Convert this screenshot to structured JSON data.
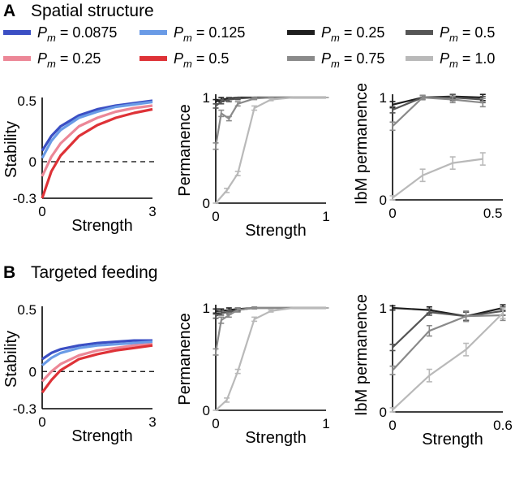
{
  "panels": [
    {
      "label": "A",
      "title": "Spatial structure"
    },
    {
      "label": "B",
      "title": "Targeted feeding"
    }
  ],
  "legend": {
    "left": [
      {
        "sym": "P",
        "sub": "m",
        "rest": " = 0.0875",
        "color": "#3b4fc4"
      },
      {
        "sym": "P",
        "sub": "m",
        "rest": " = 0.125",
        "color": "#6a9be6"
      },
      {
        "sym": "P",
        "sub": "m",
        "rest": " = 0.25",
        "color": "#ec8797"
      },
      {
        "sym": "P",
        "sub": "m",
        "rest": " = 0.5",
        "color": "#de3237"
      }
    ],
    "right": [
      {
        "sym": "P",
        "sub": "m",
        "rest": " = 0.25",
        "color": "#1e1e1e"
      },
      {
        "sym": "P",
        "sub": "m",
        "rest": " = 0.5",
        "color": "#555555"
      },
      {
        "sym": "P",
        "sub": "m",
        "rest": " = 0.75",
        "color": "#8a8a8a"
      },
      {
        "sym": "P",
        "sub": "m",
        "rest": " = 1.0",
        "color": "#b9b9b9"
      }
    ]
  },
  "chart_data": [
    {
      "id": "A-stability",
      "type": "line",
      "xlabel": "Strength",
      "ylabel": "Stability",
      "xlim": [
        0,
        3
      ],
      "ylim": [
        -0.3,
        0.5
      ],
      "xticks": [
        "0",
        "3"
      ],
      "yticks": [
        "0.5",
        "0",
        "-0.3"
      ],
      "reference_line": {
        "y": 0,
        "style": "dashed"
      },
      "series": [
        {
          "name": "Pm = 0.0875",
          "color": "#3b4fc4",
          "x": [
            0,
            0.25,
            0.5,
            1,
            1.5,
            2,
            2.5,
            3
          ],
          "y": [
            0.09,
            0.21,
            0.29,
            0.38,
            0.43,
            0.46,
            0.48,
            0.5
          ]
        },
        {
          "name": "Pm = 0.125",
          "color": "#6a9be6",
          "x": [
            0,
            0.25,
            0.5,
            1,
            1.5,
            2,
            2.5,
            3
          ],
          "y": [
            0.03,
            0.17,
            0.26,
            0.36,
            0.41,
            0.45,
            0.47,
            0.49
          ]
        },
        {
          "name": "Pm = 0.25",
          "color": "#ec8797",
          "x": [
            0,
            0.25,
            0.5,
            1,
            1.5,
            2,
            2.5,
            3
          ],
          "y": [
            -0.12,
            0.04,
            0.15,
            0.29,
            0.36,
            0.41,
            0.44,
            0.46
          ]
        },
        {
          "name": "Pm = 0.5",
          "color": "#de3237",
          "x": [
            0,
            0.25,
            0.5,
            1,
            1.5,
            2,
            2.5,
            3
          ],
          "y": [
            -0.3,
            -0.08,
            0.05,
            0.21,
            0.3,
            0.36,
            0.4,
            0.43
          ]
        }
      ]
    },
    {
      "id": "A-permanence",
      "type": "line",
      "xlabel": "Strength",
      "ylabel": "Permanence",
      "xlim": [
        0,
        1
      ],
      "ylim": [
        0,
        1
      ],
      "xticks": [
        "0",
        "1"
      ],
      "yticks": [
        "1",
        "0"
      ],
      "series": [
        {
          "name": "Pm = 0.25",
          "color": "#1e1e1e",
          "x": [
            0,
            0.05,
            0.12,
            0.2,
            0.35,
            0.5,
            0.7,
            1
          ],
          "y": [
            0.96,
            0.98,
            0.99,
            1.0,
            1.0,
            1.0,
            1.0,
            1.0
          ],
          "err": [
            0.02,
            0.02,
            0.01,
            0,
            0,
            0,
            0,
            0
          ]
        },
        {
          "name": "Pm = 0.5",
          "color": "#555555",
          "x": [
            0,
            0.05,
            0.12,
            0.2,
            0.35,
            0.5,
            0.7,
            1
          ],
          "y": [
            0.92,
            0.96,
            0.98,
            0.99,
            1.0,
            1.0,
            1.0,
            1.0
          ],
          "err": [
            0.02,
            0.02,
            0.02,
            0.01,
            0,
            0,
            0,
            0
          ]
        },
        {
          "name": "Pm = 0.75",
          "color": "#8a8a8a",
          "x": [
            0,
            0.05,
            0.12,
            0.2,
            0.35,
            0.5,
            0.7,
            1
          ],
          "y": [
            0.54,
            0.85,
            0.8,
            0.94,
            0.99,
            1.0,
            1.0,
            1.0
          ],
          "err": [
            0.03,
            0.03,
            0.02,
            0.02,
            0.01,
            0,
            0,
            0
          ]
        },
        {
          "name": "Pm = 1.0",
          "color": "#b9b9b9",
          "x": [
            0,
            0.1,
            0.2,
            0.35,
            0.5,
            0.7,
            1
          ],
          "y": [
            0.0,
            0.12,
            0.28,
            0.9,
            0.98,
            1.0,
            1.0
          ],
          "err": [
            0,
            0.02,
            0.02,
            0.02,
            0.01,
            0,
            0
          ]
        }
      ]
    },
    {
      "id": "A-ibm-permanence",
      "type": "line",
      "xlabel": "",
      "ylabel": "IbM permanence",
      "xlim": [
        0,
        0.55
      ],
      "ylim": [
        0,
        1
      ],
      "xticks": [
        "0",
        "0.5"
      ],
      "yticks": [
        "1",
        "0"
      ],
      "series": [
        {
          "name": "Pm = 0.25",
          "color": "#1e1e1e",
          "x": [
            0,
            0.15,
            0.3,
            0.45
          ],
          "y": [
            0.93,
            1.0,
            1.01,
            1.0
          ],
          "err": [
            0.03,
            0.02,
            0.02,
            0.03
          ]
        },
        {
          "name": "Pm = 0.5",
          "color": "#555555",
          "x": [
            0,
            0.15,
            0.3,
            0.45
          ],
          "y": [
            0.88,
            1.0,
            1.0,
            0.98
          ],
          "err": [
            0.03,
            0.02,
            0.03,
            0.03
          ]
        },
        {
          "name": "Pm = 0.75",
          "color": "#8a8a8a",
          "x": [
            0,
            0.15,
            0.3,
            0.45
          ],
          "y": [
            0.72,
            1.0,
            0.98,
            0.95
          ],
          "err": [
            0.04,
            0.02,
            0.03,
            0.04
          ]
        },
        {
          "name": "Pm = 1.0",
          "color": "#b9b9b9",
          "x": [
            0,
            0.15,
            0.3,
            0.45
          ],
          "y": [
            0.02,
            0.24,
            0.36,
            0.4
          ],
          "err": [
            0.02,
            0.06,
            0.06,
            0.06
          ]
        }
      ]
    },
    {
      "id": "B-stability",
      "type": "line",
      "xlabel": "Strength",
      "ylabel": "Stability",
      "xlim": [
        0,
        3
      ],
      "ylim": [
        -0.3,
        0.5
      ],
      "xticks": [
        "0",
        "3"
      ],
      "yticks": [
        "0.5",
        "0",
        "-0.3"
      ],
      "reference_line": {
        "y": 0,
        "style": "dashed"
      },
      "series": [
        {
          "name": "Pm = 0.0875",
          "color": "#3b4fc4",
          "x": [
            0,
            0.25,
            0.5,
            1,
            1.5,
            2,
            2.5,
            3
          ],
          "y": [
            0.1,
            0.15,
            0.18,
            0.21,
            0.23,
            0.24,
            0.25,
            0.25
          ]
        },
        {
          "name": "Pm = 0.125",
          "color": "#6a9be6",
          "x": [
            0,
            0.25,
            0.5,
            1,
            1.5,
            2,
            2.5,
            3
          ],
          "y": [
            0.05,
            0.11,
            0.15,
            0.19,
            0.21,
            0.22,
            0.23,
            0.24
          ]
        },
        {
          "name": "Pm = 0.25",
          "color": "#ec8797",
          "x": [
            0,
            0.25,
            0.5,
            1,
            1.5,
            2,
            2.5,
            3
          ],
          "y": [
            -0.08,
            0.0,
            0.06,
            0.13,
            0.17,
            0.19,
            0.21,
            0.22
          ]
        },
        {
          "name": "Pm = 0.5",
          "color": "#de3237",
          "x": [
            0,
            0.25,
            0.5,
            1,
            1.5,
            2,
            2.5,
            3
          ],
          "y": [
            -0.17,
            -0.07,
            0.01,
            0.1,
            0.14,
            0.17,
            0.19,
            0.21
          ]
        }
      ]
    },
    {
      "id": "B-permanence",
      "type": "line",
      "xlabel": "Strength",
      "ylabel": "Permanence",
      "xlim": [
        0,
        1
      ],
      "ylim": [
        0,
        1
      ],
      "xticks": [
        "0",
        "1"
      ],
      "yticks": [
        "1",
        "0"
      ],
      "series": [
        {
          "name": "Pm = 0.25",
          "color": "#1e1e1e",
          "x": [
            0,
            0.05,
            0.12,
            0.2,
            0.35,
            0.5,
            0.7,
            1
          ],
          "y": [
            0.97,
            0.97,
            0.98,
            0.99,
            1.0,
            1.0,
            1.0,
            1.0
          ],
          "err": [
            0.02,
            0.02,
            0.02,
            0.01,
            0,
            0,
            0,
            0
          ]
        },
        {
          "name": "Pm = 0.5",
          "color": "#555555",
          "x": [
            0,
            0.05,
            0.12,
            0.2,
            0.35,
            0.5,
            0.7,
            1
          ],
          "y": [
            0.92,
            0.95,
            0.96,
            0.98,
            1.0,
            1.0,
            1.0,
            1.0
          ],
          "err": [
            0.02,
            0.02,
            0.02,
            0.01,
            0,
            0,
            0,
            0
          ]
        },
        {
          "name": "Pm = 0.75",
          "color": "#8a8a8a",
          "x": [
            0,
            0.05,
            0.12,
            0.2,
            0.35,
            0.5,
            0.7,
            1
          ],
          "y": [
            0.57,
            0.88,
            0.93,
            0.98,
            1.0,
            1.0,
            1.0,
            1.0
          ],
          "err": [
            0.03,
            0.03,
            0.02,
            0.02,
            0.01,
            0,
            0,
            0
          ]
        },
        {
          "name": "Pm = 1.0",
          "color": "#b9b9b9",
          "x": [
            0,
            0.1,
            0.2,
            0.35,
            0.5,
            0.7,
            1
          ],
          "y": [
            0.0,
            0.1,
            0.38,
            0.89,
            0.97,
            1.0,
            1.0
          ],
          "err": [
            0,
            0.02,
            0.02,
            0.02,
            0.01,
            0,
            0
          ]
        }
      ]
    },
    {
      "id": "B-ibm-permanence",
      "type": "line",
      "xlabel": "Strength",
      "ylabel": "IbM permanence",
      "xlim": [
        0,
        0.6
      ],
      "ylim": [
        0,
        1
      ],
      "xticks": [
        "0",
        "0.6"
      ],
      "yticks": [
        "1",
        "0"
      ],
      "series": [
        {
          "name": "Pm = 0.25",
          "color": "#1e1e1e",
          "x": [
            0,
            0.2,
            0.4,
            0.6
          ],
          "y": [
            1.0,
            0.98,
            0.92,
            1.0
          ],
          "err": [
            0.02,
            0.03,
            0.04,
            0.03
          ]
        },
        {
          "name": "Pm = 0.5",
          "color": "#555555",
          "x": [
            0,
            0.2,
            0.4,
            0.6
          ],
          "y": [
            0.62,
            0.96,
            0.92,
            0.97
          ],
          "err": [
            0.03,
            0.03,
            0.04,
            0.04
          ]
        },
        {
          "name": "Pm = 0.75",
          "color": "#8a8a8a",
          "x": [
            0,
            0.2,
            0.4,
            0.6
          ],
          "y": [
            0.4,
            0.78,
            0.92,
            0.93
          ],
          "err": [
            0.04,
            0.05,
            0.05,
            0.05
          ]
        },
        {
          "name": "Pm = 1.0",
          "color": "#b9b9b9",
          "x": [
            0,
            0.2,
            0.4,
            0.6
          ],
          "y": [
            0.02,
            0.35,
            0.6,
            0.95
          ],
          "err": [
            0.02,
            0.06,
            0.06,
            0.05
          ]
        }
      ]
    }
  ]
}
